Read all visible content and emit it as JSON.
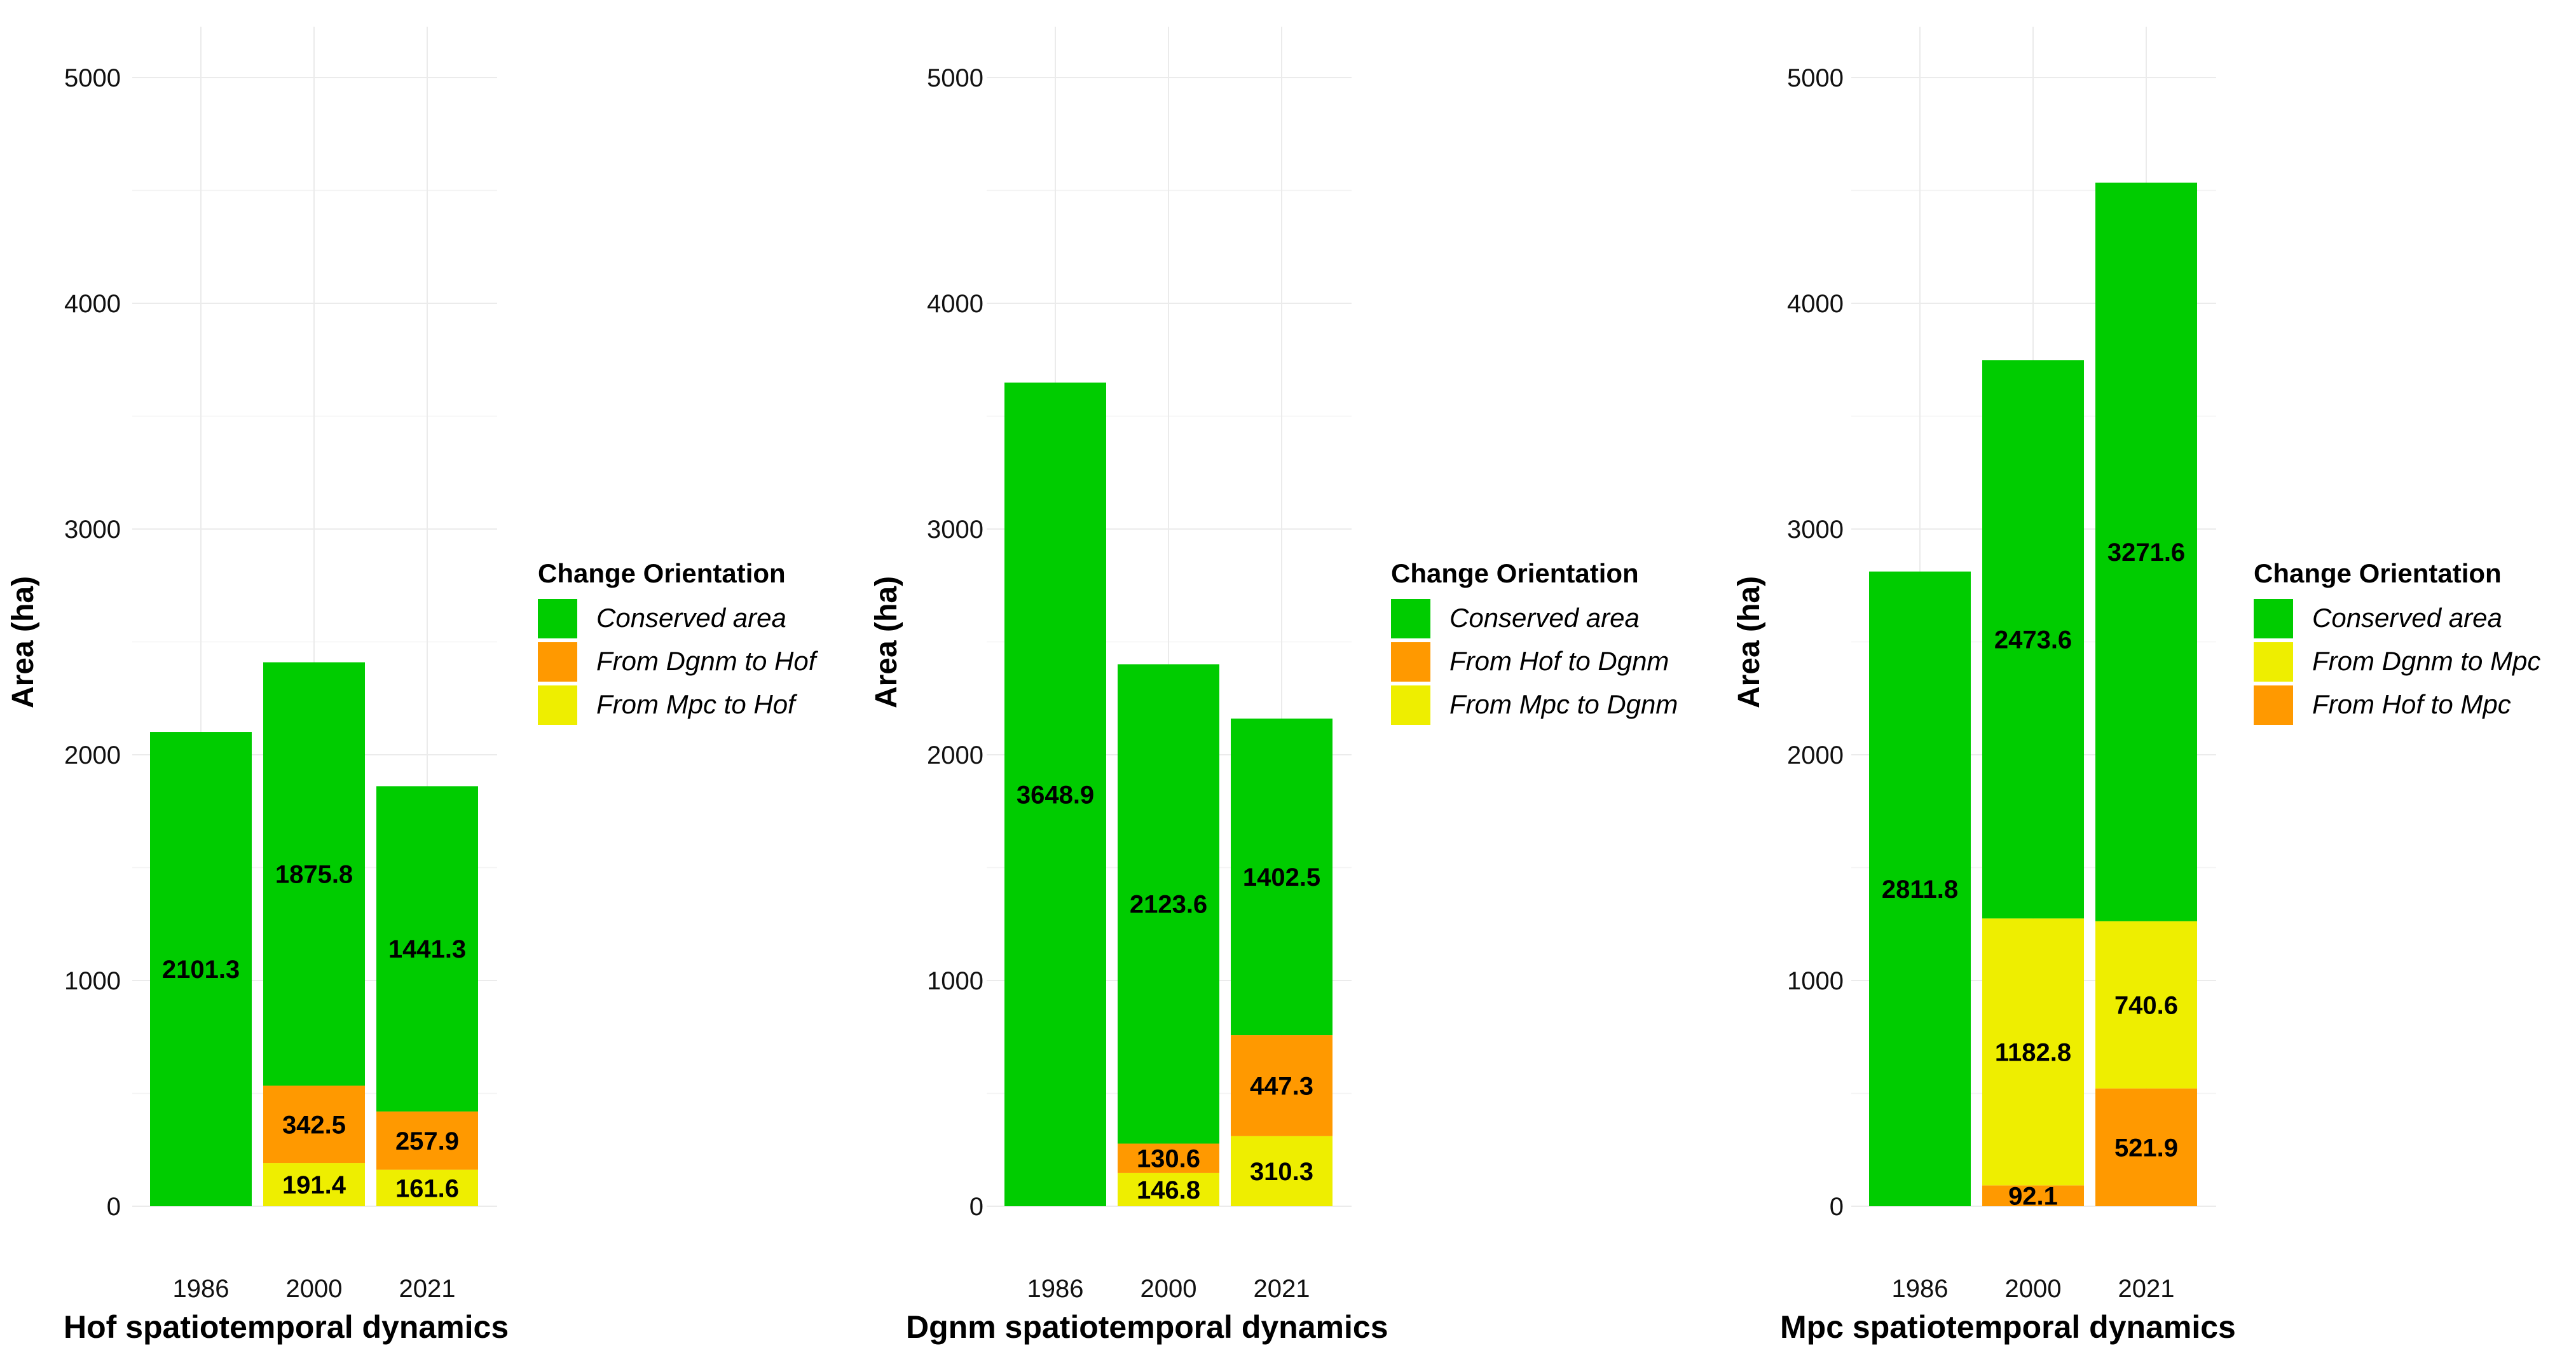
{
  "chart_data": [
    {
      "type": "bar",
      "stacked": true,
      "title": "Hof spatiotemporal dynamics",
      "xlabel": "",
      "ylabel": "Area (ha)",
      "categories": [
        "1986",
        "2000",
        "2021"
      ],
      "ylim": [
        0,
        5000
      ],
      "yticks": [
        "0",
        "1000",
        "2000",
        "3000",
        "4000",
        "5000"
      ],
      "grid": true,
      "legend_title": "Change Orientation",
      "legend_position": "right",
      "stack_order": [
        "From Mpc to Hof",
        "From Dgnm to Hof",
        "Conserved area"
      ],
      "series": [
        {
          "name": "Conserved area",
          "color": "#00cc00",
          "values": [
            2101.3,
            1875.8,
            1441.3
          ],
          "labels": [
            "2101.3",
            "1875.8",
            "1441.3"
          ]
        },
        {
          "name": "From Dgnm to Hof",
          "color": "#ff9900",
          "values": [
            0,
            342.5,
            257.9
          ],
          "labels": [
            "",
            "342.5",
            "257.9"
          ]
        },
        {
          "name": "From Mpc to Hof",
          "color": "#eeee00",
          "values": [
            0,
            191.4,
            161.6
          ],
          "labels": [
            "",
            "191.4",
            "161.6"
          ]
        }
      ]
    },
    {
      "type": "bar",
      "stacked": true,
      "title": "Dgnm spatiotemporal dynamics",
      "xlabel": "",
      "ylabel": "Area (ha)",
      "categories": [
        "1986",
        "2000",
        "2021"
      ],
      "ylim": [
        0,
        5000
      ],
      "yticks": [
        "0",
        "1000",
        "2000",
        "3000",
        "4000",
        "5000"
      ],
      "grid": true,
      "legend_title": "Change Orientation",
      "legend_position": "right",
      "stack_order": [
        "From Mpc to Dgnm",
        "From Hof to Dgnm",
        "Conserved area"
      ],
      "series": [
        {
          "name": "Conserved area",
          "color": "#00cc00",
          "values": [
            3648.9,
            2123.6,
            1402.5
          ],
          "labels": [
            "3648.9",
            "2123.6",
            "1402.5"
          ]
        },
        {
          "name": "From Hof to Dgnm",
          "color": "#ff9900",
          "values": [
            0,
            130.6,
            447.3
          ],
          "labels": [
            "",
            "130.6",
            "447.3"
          ]
        },
        {
          "name": "From Mpc to Dgnm",
          "color": "#eeee00",
          "values": [
            0,
            146.8,
            310.3
          ],
          "labels": [
            "",
            "146.8",
            "310.3"
          ]
        }
      ]
    },
    {
      "type": "bar",
      "stacked": true,
      "title": "Mpc spatiotemporal dynamics",
      "xlabel": "",
      "ylabel": "Area (ha)",
      "categories": [
        "1986",
        "2000",
        "2021"
      ],
      "ylim": [
        0,
        5000
      ],
      "yticks": [
        "0",
        "1000",
        "2000",
        "3000",
        "4000",
        "5000"
      ],
      "grid": true,
      "legend_title": "Change Orientation",
      "legend_position": "right",
      "stack_order": [
        "From Hof to Mpc",
        "From Dgnm to Mpc",
        "Conserved area"
      ],
      "series": [
        {
          "name": "Conserved area",
          "color": "#00cc00",
          "values": [
            2811.8,
            2473.6,
            3271.6
          ],
          "labels": [
            "2811.8",
            "2473.6",
            "3271.6"
          ]
        },
        {
          "name": "From Dgnm to Mpc",
          "color": "#eeee00",
          "values": [
            0,
            1182.8,
            740.6
          ],
          "labels": [
            "",
            "1182.8",
            "740.6"
          ]
        },
        {
          "name": "From Hof to Mpc",
          "color": "#ff9900",
          "values": [
            0,
            92.1,
            521.9
          ],
          "labels": [
            "",
            "92.1",
            "521.9"
          ]
        }
      ]
    }
  ]
}
